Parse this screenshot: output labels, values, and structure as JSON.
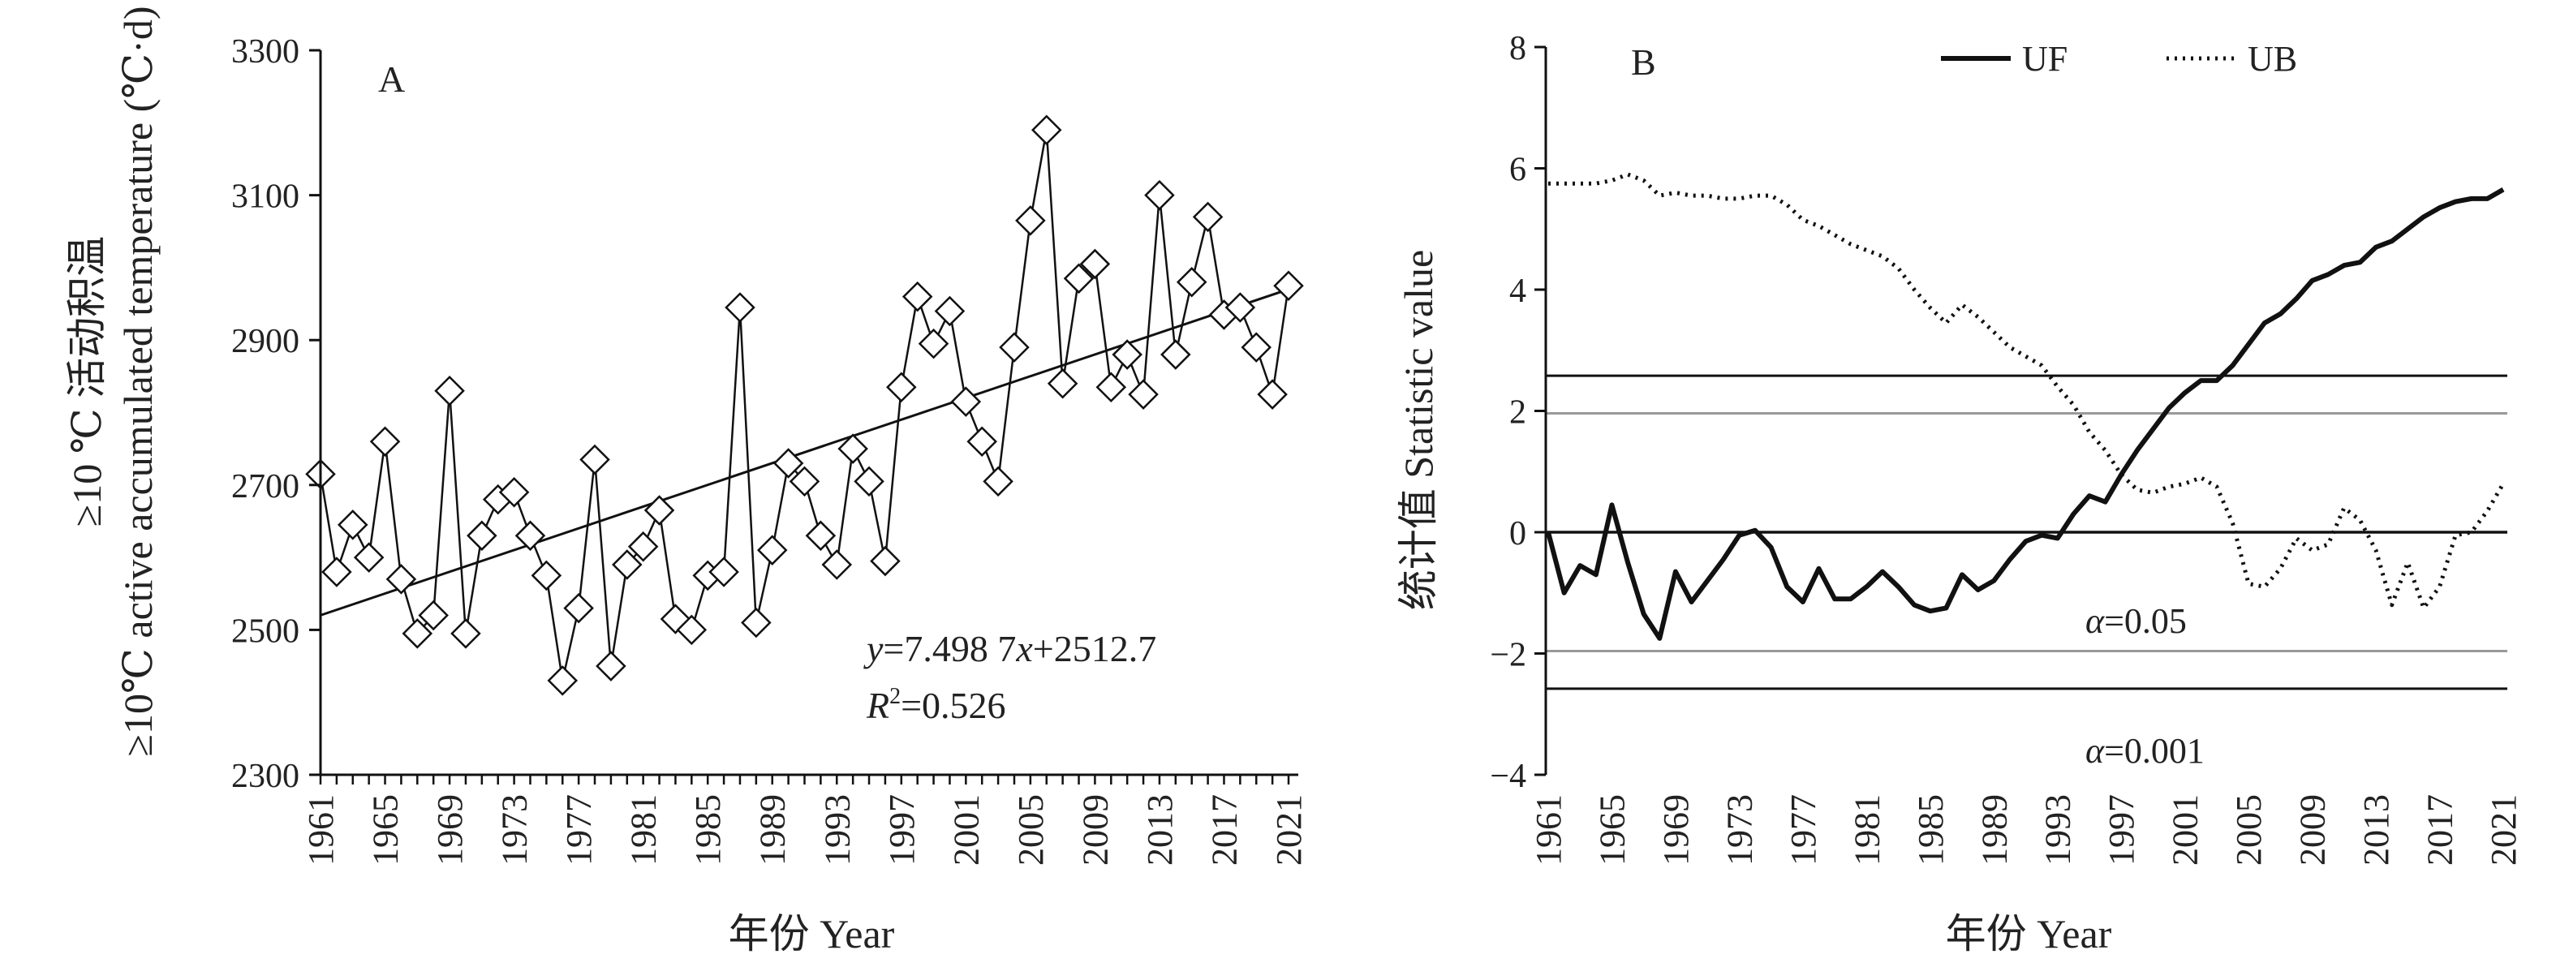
{
  "chart_data": [
    {
      "type": "line",
      "panel_label": "A",
      "xlabel": "年份 Year",
      "ylabel_line1": "≥10 ℃ 活动积温",
      "ylabel_line2": "≥10℃ active accumulated temperature (℃·d)",
      "ylim": [
        2300,
        3300
      ],
      "yticks": [
        "2300",
        "2500",
        "2700",
        "2900",
        "3100",
        "3300"
      ],
      "xticks": [
        "1961",
        "1965",
        "1969",
        "1973",
        "1977",
        "1981",
        "1985",
        "1989",
        "1993",
        "1997",
        "2001",
        "2005",
        "2009",
        "2013",
        "2017",
        "2021"
      ],
      "x": [
        1961,
        1962,
        1963,
        1964,
        1965,
        1966,
        1967,
        1968,
        1969,
        1970,
        1971,
        1972,
        1973,
        1974,
        1975,
        1976,
        1977,
        1978,
        1979,
        1980,
        1981,
        1982,
        1983,
        1984,
        1985,
        1986,
        1987,
        1988,
        1989,
        1990,
        1991,
        1992,
        1993,
        1994,
        1995,
        1996,
        1997,
        1998,
        1999,
        2000,
        2001,
        2002,
        2003,
        2004,
        2005,
        2006,
        2007,
        2008,
        2009,
        2010,
        2011,
        2012,
        2013,
        2014,
        2015,
        2016,
        2017,
        2018,
        2019,
        2020,
        2021
      ],
      "series": [
        {
          "marker": "diamond",
          "values": [
            2715,
            2580,
            2645,
            2600,
            2760,
            2570,
            2495,
            2520,
            2830,
            2495,
            2630,
            2680,
            2690,
            2630,
            2575,
            2430,
            2530,
            2735,
            2450,
            2590,
            2615,
            2665,
            2515,
            2500,
            2575,
            2580,
            2945,
            2510,
            2610,
            2730,
            2705,
            2630,
            2590,
            2750,
            2705,
            2595,
            2835,
            2960,
            2895,
            2940,
            2815,
            2760,
            2705,
            2890,
            3065,
            3190,
            2840,
            2985,
            3005,
            2835,
            2880,
            2825,
            3100,
            2880,
            2980,
            3070,
            2935,
            2945,
            2890,
            2825,
            2975
          ]
        }
      ],
      "trendline": {
        "slope": 7.4987,
        "intercept": 2512.7
      },
      "equation_y": "y",
      "equation_rest": "=7.498 7",
      "equation_x": "x",
      "equation_const": "+2512.7",
      "r2_label": "R",
      "r2_sup": "2",
      "r2_value": "=0.526"
    },
    {
      "type": "line",
      "panel_label": "B",
      "xlabel": "年份 Year",
      "ylabel": "统计值 Statistic value",
      "ylim": [
        -4,
        8
      ],
      "yticks": [
        "−4",
        "−2",
        "0",
        "2",
        "4",
        "6",
        "8"
      ],
      "xticks": [
        "1961",
        "1965",
        "1969",
        "1973",
        "1977",
        "1981",
        "1985",
        "1989",
        "1993",
        "1997",
        "2001",
        "2005",
        "2009",
        "2013",
        "2017",
        "2021"
      ],
      "x": [
        1961,
        1962,
        1963,
        1964,
        1965,
        1966,
        1967,
        1968,
        1969,
        1970,
        1971,
        1972,
        1973,
        1974,
        1975,
        1976,
        1977,
        1978,
        1979,
        1980,
        1981,
        1982,
        1983,
        1984,
        1985,
        1986,
        1987,
        1988,
        1989,
        1990,
        1991,
        1992,
        1993,
        1994,
        1995,
        1996,
        1997,
        1998,
        1999,
        2000,
        2001,
        2002,
        2003,
        2004,
        2005,
        2006,
        2007,
        2008,
        2009,
        2010,
        2011,
        2012,
        2013,
        2014,
        2015,
        2016,
        2017,
        2018,
        2019,
        2020,
        2021
      ],
      "series": [
        {
          "name": "UF",
          "style": "solid",
          "values": [
            0.0,
            -1.0,
            -0.55,
            -0.7,
            0.45,
            -0.5,
            -1.35,
            -1.75,
            -0.65,
            -1.15,
            -0.8,
            -0.45,
            -0.05,
            0.03,
            -0.25,
            -0.9,
            -1.15,
            -0.6,
            -1.1,
            -1.1,
            -0.9,
            -0.65,
            -0.9,
            -1.2,
            -1.3,
            -1.25,
            -0.7,
            -0.95,
            -0.8,
            -0.45,
            -0.15,
            -0.05,
            -0.1,
            0.3,
            0.6,
            0.5,
            0.95,
            1.35,
            1.7,
            2.05,
            2.3,
            2.5,
            2.5,
            2.75,
            3.1,
            3.45,
            3.6,
            3.85,
            4.15,
            4.25,
            4.4,
            4.45,
            4.7,
            4.8,
            5.0,
            5.2,
            5.35,
            5.45,
            5.5,
            5.5,
            5.65
          ]
        },
        {
          "name": "UB",
          "style": "dotted",
          "values": [
            5.75,
            5.75,
            5.75,
            5.75,
            5.8,
            5.9,
            5.8,
            5.55,
            5.6,
            5.55,
            5.55,
            5.5,
            5.5,
            5.55,
            5.55,
            5.4,
            5.15,
            5.05,
            4.9,
            4.75,
            4.65,
            4.55,
            4.35,
            4.0,
            3.7,
            3.45,
            3.75,
            3.55,
            3.3,
            3.05,
            2.9,
            2.75,
            2.4,
            2.1,
            1.65,
            1.35,
            0.95,
            0.7,
            0.65,
            0.75,
            0.8,
            0.9,
            0.75,
            0.15,
            -0.85,
            -0.9,
            -0.6,
            -0.1,
            -0.3,
            -0.2,
            0.4,
            0.2,
            -0.3,
            -1.2,
            -0.5,
            -1.25,
            -0.9,
            -0.05,
            0.0,
            0.35,
            0.8
          ]
        }
      ],
      "ref_lines": [
        {
          "value": 2.58,
          "color": "#111111"
        },
        {
          "value": 1.96,
          "color": "#999999"
        },
        {
          "value": 0,
          "color": "#111111"
        },
        {
          "value": -1.96,
          "color": "#999999"
        },
        {
          "value": -2.58,
          "color": "#111111"
        }
      ],
      "alpha_symbol": "α",
      "alpha_005_value": "=0.05",
      "alpha_0001_value": "=0.001"
    }
  ]
}
